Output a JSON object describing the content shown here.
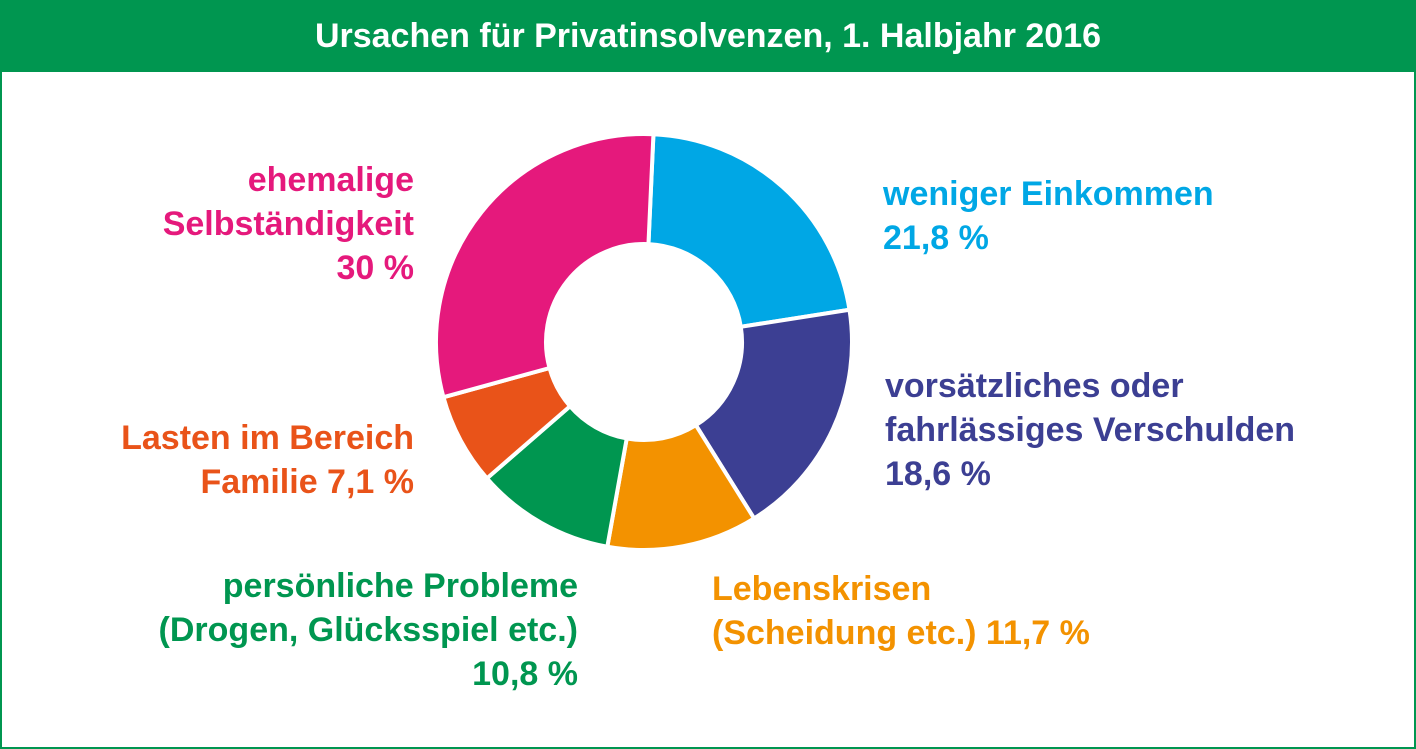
{
  "title": "Ursachen für Privatinsolvenzen, 1. Halbjahr 2016",
  "colors": {
    "header_bg": "#009650",
    "header_text": "#ffffff"
  },
  "chart_data": {
    "type": "pie",
    "title": "Ursachen für Privatinsolvenzen, 1. Halbjahr 2016",
    "unit": "%",
    "slices": [
      {
        "label": "weniger Einkommen",
        "value": 21.8,
        "color": "#00a7e5",
        "value_text": "21,8 %"
      },
      {
        "label": "vorsätzliches oder fahrlässiges Verschulden",
        "value": 18.6,
        "color": "#3c3f93",
        "value_text": "18,6 %"
      },
      {
        "label": "Lebenskrisen (Scheidung etc.)",
        "value": 11.7,
        "color": "#f39200",
        "value_text": "11,7 %"
      },
      {
        "label": "persönliche Probleme (Drogen, Glücksspiel etc.)",
        "value": 10.8,
        "color": "#009650",
        "value_text": "10,8 %"
      },
      {
        "label": "Lasten im Bereich Familie",
        "value": 7.1,
        "color": "#e95319",
        "value_text": "7,1 %"
      },
      {
        "label": "ehemalige Selbständigkeit",
        "value": 30,
        "color": "#e5197c",
        "value_text": "30 %"
      }
    ]
  },
  "labels": {
    "weniger_einkommen": {
      "line1": "weniger Einkommen",
      "line2": "21,8 %"
    },
    "verschulden": {
      "line1": "vorsätzliches oder",
      "line2": "fahrlässiges Verschulden",
      "line3": "18,6 %"
    },
    "lebenskrisen": {
      "line1": "Lebenskrisen",
      "line2": "(Scheidung etc.) 11,7 %"
    },
    "probleme": {
      "line1": "persönliche Probleme",
      "line2": "(Drogen, Glücksspiel etc.)",
      "line3": "10,8 %"
    },
    "familie": {
      "line1": "Lasten im Bereich",
      "line2": "Familie 7,1 %"
    },
    "selbstaendigkeit": {
      "line1": "ehemalige",
      "line2": "Selbständigkeit",
      "line3": "30 %"
    }
  }
}
